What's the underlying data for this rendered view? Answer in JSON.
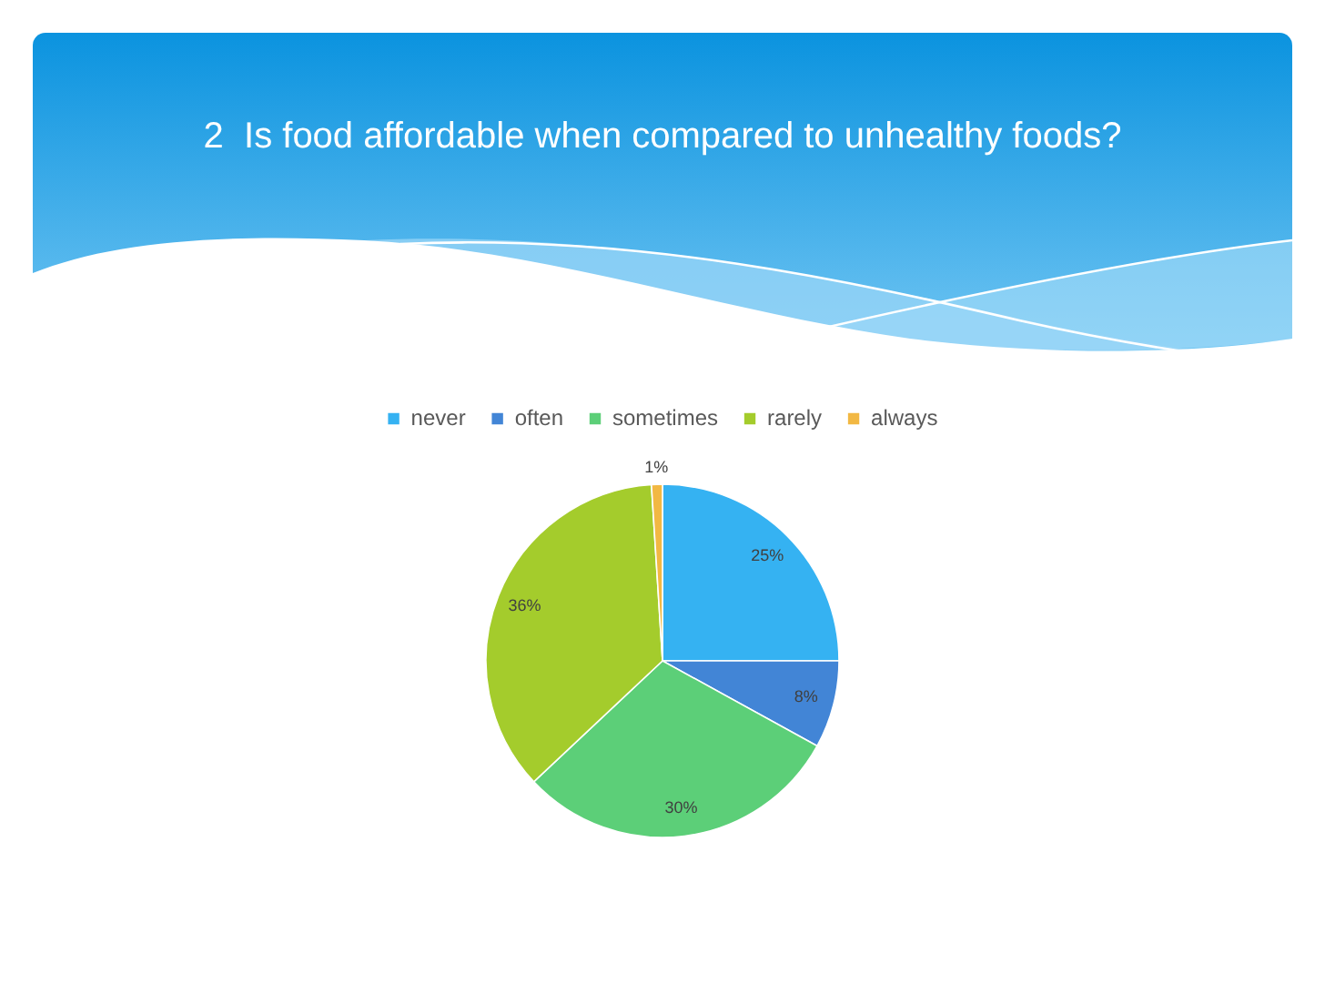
{
  "chart_data": {
    "type": "pie",
    "title": "2  Is food affordable when compared to unhealthy foods?",
    "categories": [
      "never",
      "often",
      "sometimes",
      "rarely",
      "always"
    ],
    "values": [
      25,
      8,
      30,
      36,
      1
    ],
    "colors": [
      "#35b2f2",
      "#4285d6",
      "#5ccf78",
      "#a4cc2c",
      "#f2b843"
    ],
    "value_labels": [
      "25%",
      "8%",
      "30%",
      "36%",
      "1%"
    ],
    "legend": "top"
  }
}
